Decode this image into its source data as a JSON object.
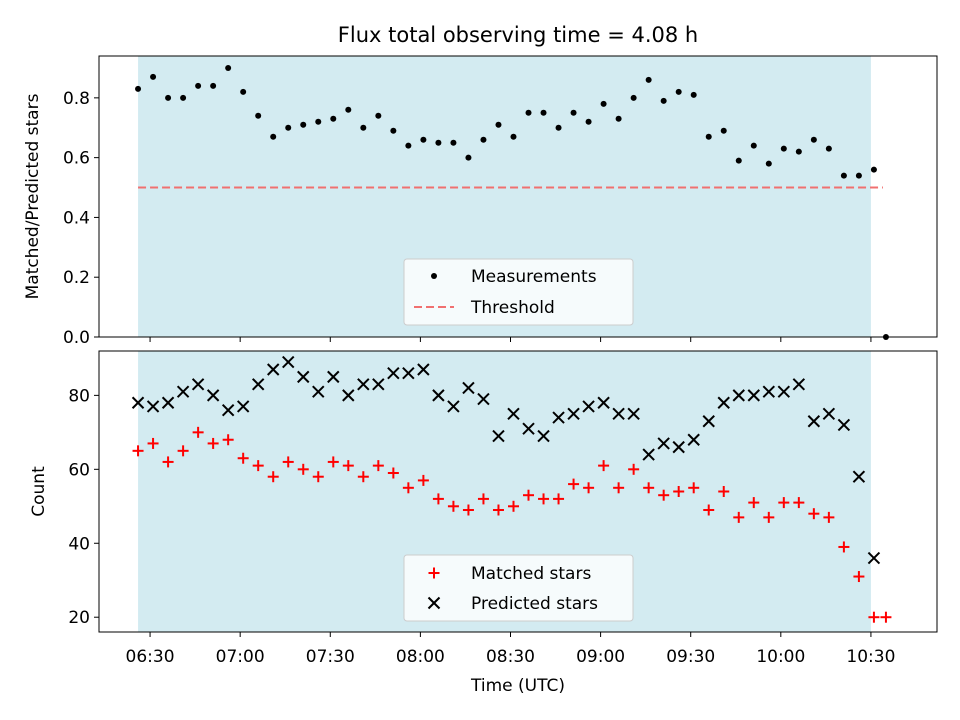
{
  "chart_data": [
    {
      "type": "scatter",
      "title": "Flux total observing time = 4.08 h",
      "xlabel": "",
      "ylabel": "Matched/Predicted stars",
      "ylim": [
        0.0,
        0.94
      ],
      "yticks": [
        "0.0",
        "0.2",
        "0.4",
        "0.6",
        "0.8"
      ],
      "ytick_values": [
        0.0,
        0.2,
        0.4,
        0.6,
        0.8
      ],
      "shaded_span": [
        "06:26",
        "10:30"
      ],
      "legend_position": "lower-center",
      "series": [
        {
          "name": "Measurements",
          "marker": "dot",
          "color": "#000000",
          "x": [
            "06:26",
            "06:31",
            "06:36",
            "06:41",
            "06:46",
            "06:51",
            "06:56",
            "07:01",
            "07:06",
            "07:11",
            "07:16",
            "07:21",
            "07:26",
            "07:31",
            "07:36",
            "07:41",
            "07:46",
            "07:51",
            "07:56",
            "08:01",
            "08:06",
            "08:11",
            "08:16",
            "08:21",
            "08:26",
            "08:31",
            "08:36",
            "08:41",
            "08:46",
            "08:51",
            "08:56",
            "09:01",
            "09:06",
            "09:11",
            "09:16",
            "09:21",
            "09:26",
            "09:31",
            "09:36",
            "09:41",
            "09:46",
            "09:51",
            "09:56",
            "10:01",
            "10:06",
            "10:11",
            "10:16",
            "10:21",
            "10:26",
            "10:31",
            "10:35"
          ],
          "y": [
            0.83,
            0.87,
            0.8,
            0.8,
            0.84,
            0.84,
            0.9,
            0.82,
            0.74,
            0.67,
            0.7,
            0.71,
            0.72,
            0.73,
            0.76,
            0.7,
            0.74,
            0.69,
            0.64,
            0.66,
            0.65,
            0.65,
            0.6,
            0.66,
            0.71,
            0.67,
            0.75,
            0.75,
            0.7,
            0.75,
            0.72,
            0.78,
            0.73,
            0.8,
            0.86,
            0.79,
            0.82,
            0.81,
            0.67,
            0.69,
            0.59,
            0.64,
            0.58,
            0.63,
            0.62,
            0.66,
            0.63,
            0.54,
            0.54,
            0.56,
            0.0
          ]
        },
        {
          "name": "Threshold",
          "type": "line",
          "style": "dashed",
          "color": "#f07070",
          "x": [
            "06:26",
            "10:34"
          ],
          "y": [
            0.5,
            0.5
          ]
        }
      ]
    },
    {
      "type": "scatter",
      "title": "",
      "xlabel": "Time (UTC)",
      "ylabel": "Count",
      "ylim": [
        16,
        92
      ],
      "yticks": [
        "20",
        "40",
        "60",
        "80"
      ],
      "ytick_values": [
        20,
        40,
        60,
        80
      ],
      "xticks": [
        "06:30",
        "07:00",
        "07:30",
        "08:00",
        "08:30",
        "09:00",
        "09:30",
        "10:00",
        "10:30"
      ],
      "legend_position": "lower-center",
      "series": [
        {
          "name": "Matched stars",
          "marker": "plus",
          "color": "#ff0000",
          "x": [
            "06:26",
            "06:31",
            "06:36",
            "06:41",
            "06:46",
            "06:51",
            "06:56",
            "07:01",
            "07:06",
            "07:11",
            "07:16",
            "07:21",
            "07:26",
            "07:31",
            "07:36",
            "07:41",
            "07:46",
            "07:51",
            "07:56",
            "08:01",
            "08:06",
            "08:11",
            "08:16",
            "08:21",
            "08:26",
            "08:31",
            "08:36",
            "08:41",
            "08:46",
            "08:51",
            "08:56",
            "09:01",
            "09:06",
            "09:11",
            "09:16",
            "09:21",
            "09:26",
            "09:31",
            "09:36",
            "09:41",
            "09:46",
            "09:51",
            "09:56",
            "10:01",
            "10:06",
            "10:11",
            "10:16",
            "10:21",
            "10:26",
            "10:31",
            "10:35"
          ],
          "y": [
            65,
            67,
            62,
            65,
            70,
            67,
            68,
            63,
            61,
            58,
            62,
            60,
            58,
            62,
            61,
            58,
            61,
            59,
            55,
            57,
            52,
            50,
            49,
            52,
            49,
            50,
            53,
            52,
            52,
            56,
            55,
            61,
            55,
            60,
            55,
            53,
            54,
            55,
            49,
            54,
            47,
            51,
            47,
            51,
            51,
            48,
            47,
            39,
            31,
            20,
            20
          ]
        },
        {
          "name": "Predicted stars",
          "marker": "x",
          "color": "#000000",
          "x": [
            "06:26",
            "06:31",
            "06:36",
            "06:41",
            "06:46",
            "06:51",
            "06:56",
            "07:01",
            "07:06",
            "07:11",
            "07:16",
            "07:21",
            "07:26",
            "07:31",
            "07:36",
            "07:41",
            "07:46",
            "07:51",
            "07:56",
            "08:01",
            "08:06",
            "08:11",
            "08:16",
            "08:21",
            "08:26",
            "08:31",
            "08:36",
            "08:41",
            "08:46",
            "08:51",
            "08:56",
            "09:01",
            "09:06",
            "09:11",
            "09:16",
            "09:21",
            "09:26",
            "09:31",
            "09:36",
            "09:41",
            "09:46",
            "09:51",
            "09:56",
            "10:01",
            "10:06",
            "10:11",
            "10:16",
            "10:21",
            "10:26",
            "10:31"
          ],
          "y": [
            78,
            77,
            78,
            81,
            83,
            80,
            76,
            77,
            83,
            87,
            89,
            85,
            81,
            85,
            80,
            83,
            83,
            86,
            86,
            87,
            80,
            77,
            82,
            79,
            69,
            75,
            71,
            69,
            74,
            75,
            77,
            78,
            75,
            75,
            64,
            67,
            66,
            68,
            73,
            78,
            80,
            80,
            81,
            81,
            83,
            73,
            75,
            72,
            58,
            36
          ]
        }
      ]
    }
  ],
  "colors": {
    "shade": "#d3ebf1",
    "axis": "#000000"
  }
}
